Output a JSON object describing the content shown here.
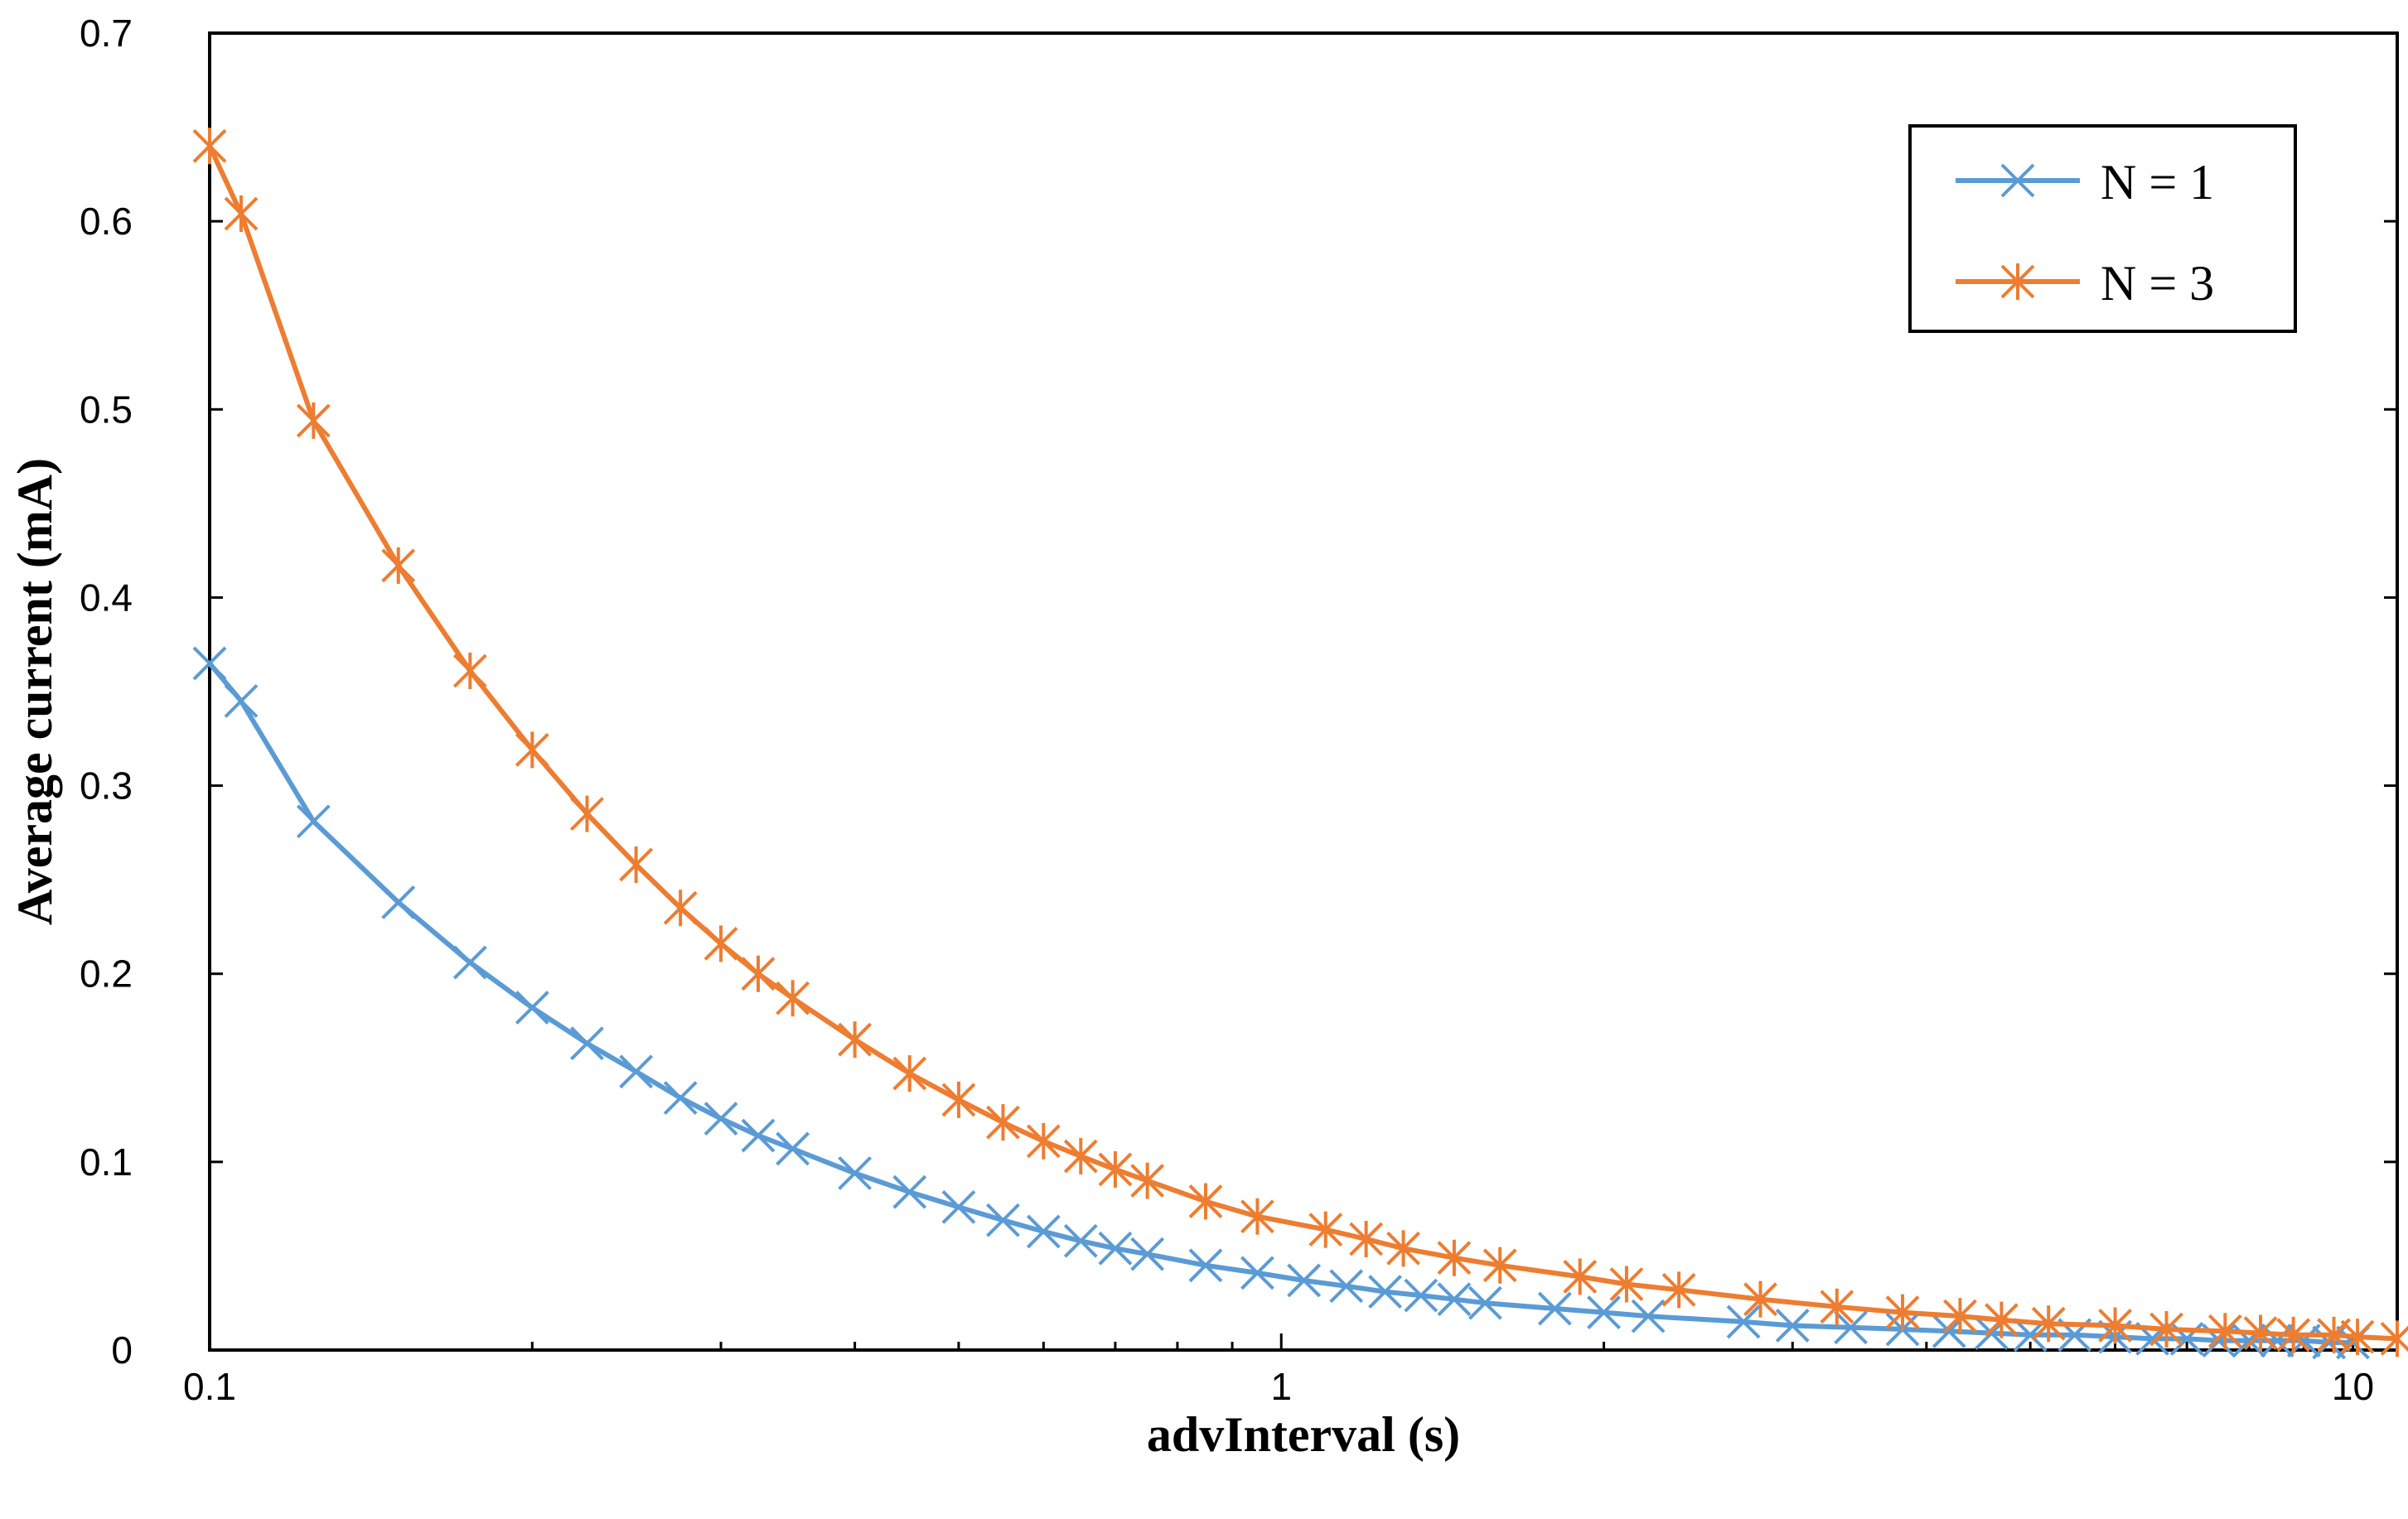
{
  "chart_data": {
    "type": "line",
    "xlabel": "advInterval (s)",
    "ylabel": "Average current (mA)",
    "x_scale": "log",
    "xlim": [
      0.1,
      11
    ],
    "ylim": [
      0,
      0.7
    ],
    "x_ticks": [
      0.1,
      1,
      10
    ],
    "x_tick_labels": [
      "0.1",
      "1",
      "10"
    ],
    "y_ticks": [
      0,
      0.1,
      0.2,
      0.3,
      0.4,
      0.5,
      0.6,
      0.7
    ],
    "y_tick_labels": [
      "0",
      "0.1",
      "0.2",
      "0.3",
      "0.4",
      "0.5",
      "0.6",
      "0.7"
    ],
    "grid": false,
    "legend_position": "top-right",
    "series": [
      {
        "name": "N = 1",
        "color": "#5B9BD5",
        "marker": "x",
        "points": [
          [
            0.1,
            0.365
          ],
          [
            0.107,
            0.345
          ],
          [
            0.125,
            0.281
          ],
          [
            0.15,
            0.238
          ],
          [
            0.175,
            0.206
          ],
          [
            0.2,
            0.182
          ],
          [
            0.225,
            0.163
          ],
          [
            0.25,
            0.148
          ],
          [
            0.275,
            0.134
          ],
          [
            0.3,
            0.123
          ],
          [
            0.325,
            0.114
          ],
          [
            0.35,
            0.107
          ],
          [
            0.4,
            0.094
          ],
          [
            0.45,
            0.084
          ],
          [
            0.5,
            0.076
          ],
          [
            0.55,
            0.069
          ],
          [
            0.6,
            0.063
          ],
          [
            0.65,
            0.058
          ],
          [
            0.7,
            0.054
          ],
          [
            0.75,
            0.051
          ],
          [
            0.85,
            0.045
          ],
          [
            0.95,
            0.041
          ],
          [
            1.05,
            0.037
          ],
          [
            1.15,
            0.034
          ],
          [
            1.25,
            0.031
          ],
          [
            1.35,
            0.029
          ],
          [
            1.45,
            0.027
          ],
          [
            1.55,
            0.025
          ],
          [
            1.8,
            0.022
          ],
          [
            2.0,
            0.02
          ],
          [
            2.2,
            0.018
          ],
          [
            2.7,
            0.015
          ],
          [
            3.0,
            0.013
          ],
          [
            3.4,
            0.012
          ],
          [
            3.8,
            0.011
          ],
          [
            4.2,
            0.01
          ],
          [
            4.6,
            0.009
          ],
          [
            5.0,
            0.008
          ],
          [
            5.5,
            0.008
          ],
          [
            6.0,
            0.007
          ],
          [
            6.5,
            0.006
          ],
          [
            7.0,
            0.006
          ],
          [
            7.5,
            0.005
          ],
          [
            8.0,
            0.005
          ],
          [
            8.5,
            0.005
          ],
          [
            9.0,
            0.005
          ],
          [
            9.5,
            0.004
          ],
          [
            10.0,
            0.004
          ]
        ]
      },
      {
        "name": "N = 3",
        "color": "#ED7D31",
        "marker": "asterisk",
        "points": [
          [
            0.1,
            0.64
          ],
          [
            0.107,
            0.604
          ],
          [
            0.125,
            0.494
          ],
          [
            0.15,
            0.417
          ],
          [
            0.175,
            0.361
          ],
          [
            0.2,
            0.319
          ],
          [
            0.225,
            0.285
          ],
          [
            0.25,
            0.258
          ],
          [
            0.275,
            0.235
          ],
          [
            0.3,
            0.216
          ],
          [
            0.325,
            0.2
          ],
          [
            0.35,
            0.187
          ],
          [
            0.4,
            0.165
          ],
          [
            0.45,
            0.147
          ],
          [
            0.5,
            0.133
          ],
          [
            0.55,
            0.121
          ],
          [
            0.6,
            0.111
          ],
          [
            0.65,
            0.103
          ],
          [
            0.7,
            0.096
          ],
          [
            0.75,
            0.09
          ],
          [
            0.85,
            0.079
          ],
          [
            0.95,
            0.071
          ],
          [
            1.1,
            0.064
          ],
          [
            1.2,
            0.059
          ],
          [
            1.3,
            0.054
          ],
          [
            1.45,
            0.049
          ],
          [
            1.6,
            0.045
          ],
          [
            1.9,
            0.039
          ],
          [
            2.1,
            0.035
          ],
          [
            2.35,
            0.032
          ],
          [
            2.8,
            0.027
          ],
          [
            3.3,
            0.023
          ],
          [
            3.8,
            0.02
          ],
          [
            4.3,
            0.018
          ],
          [
            4.7,
            0.016
          ],
          [
            5.2,
            0.014
          ],
          [
            6.0,
            0.013
          ],
          [
            6.7,
            0.011
          ],
          [
            7.6,
            0.01
          ],
          [
            8.2,
            0.009
          ],
          [
            8.8,
            0.008
          ],
          [
            9.6,
            0.008
          ],
          [
            10.1,
            0.007
          ],
          [
            11.0,
            0.006
          ]
        ]
      }
    ]
  }
}
